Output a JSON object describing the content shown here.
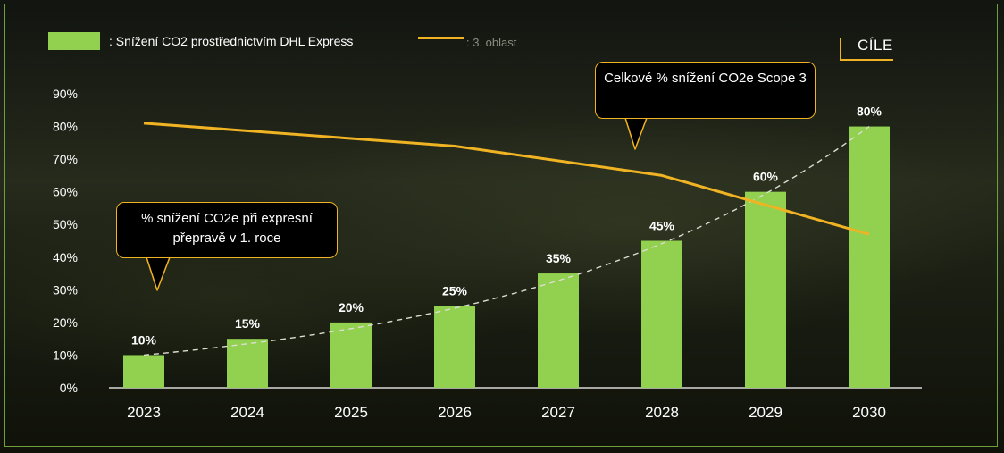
{
  "legend": {
    "bar_label": ": Snížení CO2 prostřednictvím DHL Express",
    "line_label": ": 3. oblast"
  },
  "goal_tag": "CÍLE",
  "callouts": {
    "scope3": "Celkové % snížení CO2e Scope 3",
    "express": "% snížení CO2e při expresní přepravě v 1. roce"
  },
  "colors": {
    "bar": "#92d050",
    "line": "#f0b323",
    "trend": "#dcdcd2",
    "axis_text": "#ffffff"
  },
  "chart_data": {
    "type": "bar",
    "categories": [
      "2023",
      "2024",
      "2025",
      "2026",
      "2027",
      "2028",
      "2029",
      "2030"
    ],
    "series": [
      {
        "name": ": Snížení CO2 prostřednictvím DHL Express",
        "type": "bar",
        "values": [
          10,
          15,
          20,
          25,
          35,
          45,
          60,
          80
        ]
      },
      {
        "name": ": 3. oblast",
        "type": "line",
        "values": [
          81,
          null,
          null,
          74,
          null,
          65,
          null,
          47
        ]
      }
    ],
    "data_labels": [
      "10%",
      "15%",
      "20%",
      "25%",
      "35%",
      "45%",
      "60%",
      "80%"
    ],
    "trendline": "exponential, dashed",
    "y_ticks": [
      "0%",
      "10%",
      "20%",
      "30%",
      "40%",
      "50%",
      "60%",
      "70%",
      "80%",
      "90%"
    ],
    "ylim": [
      0,
      90
    ],
    "xlabel": "",
    "ylabel": "",
    "grid": false,
    "legend_position": "top-left"
  }
}
